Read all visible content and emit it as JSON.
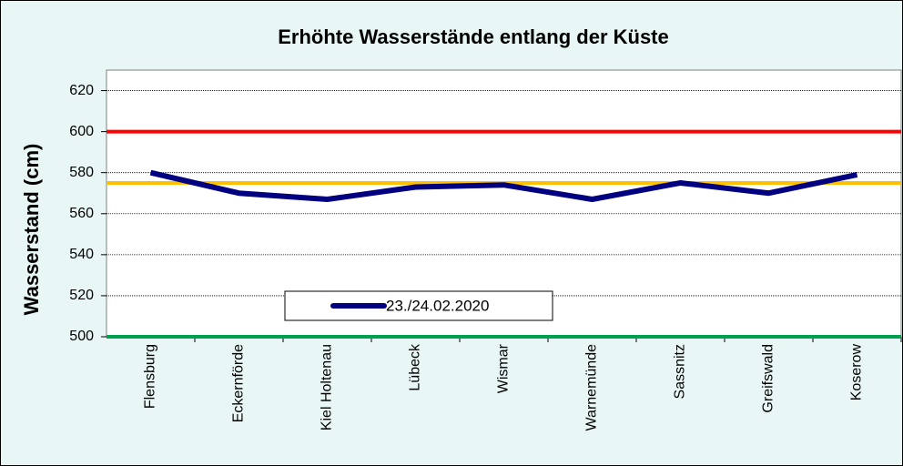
{
  "chart_data": {
    "type": "line",
    "title": "Erhöhte Wasserstände entlang der Küste",
    "y_label": "Wasserstand (cm)",
    "categories": [
      "Flensburg",
      "Eckernförde",
      "Kiel Holtenau",
      "Lübeck",
      "Wismar",
      "Warnemünde",
      "Sassnitz",
      "Greifswald",
      "Koserow"
    ],
    "series": [
      {
        "name": "23./24.02.2020",
        "color": "#000080",
        "values": [
          580,
          570,
          567,
          573,
          574,
          567,
          575,
          570,
          579
        ]
      }
    ],
    "reference_lines": [
      {
        "value": 600,
        "color": "#ff0000"
      },
      {
        "value": 575,
        "color": "#ffc000"
      },
      {
        "value": 500,
        "color": "#00a050"
      }
    ],
    "ylim": [
      500,
      630
    ],
    "yticks": [
      500,
      520,
      540,
      560,
      580,
      600,
      620
    ],
    "grid": true,
    "legend": "bottom-left"
  }
}
